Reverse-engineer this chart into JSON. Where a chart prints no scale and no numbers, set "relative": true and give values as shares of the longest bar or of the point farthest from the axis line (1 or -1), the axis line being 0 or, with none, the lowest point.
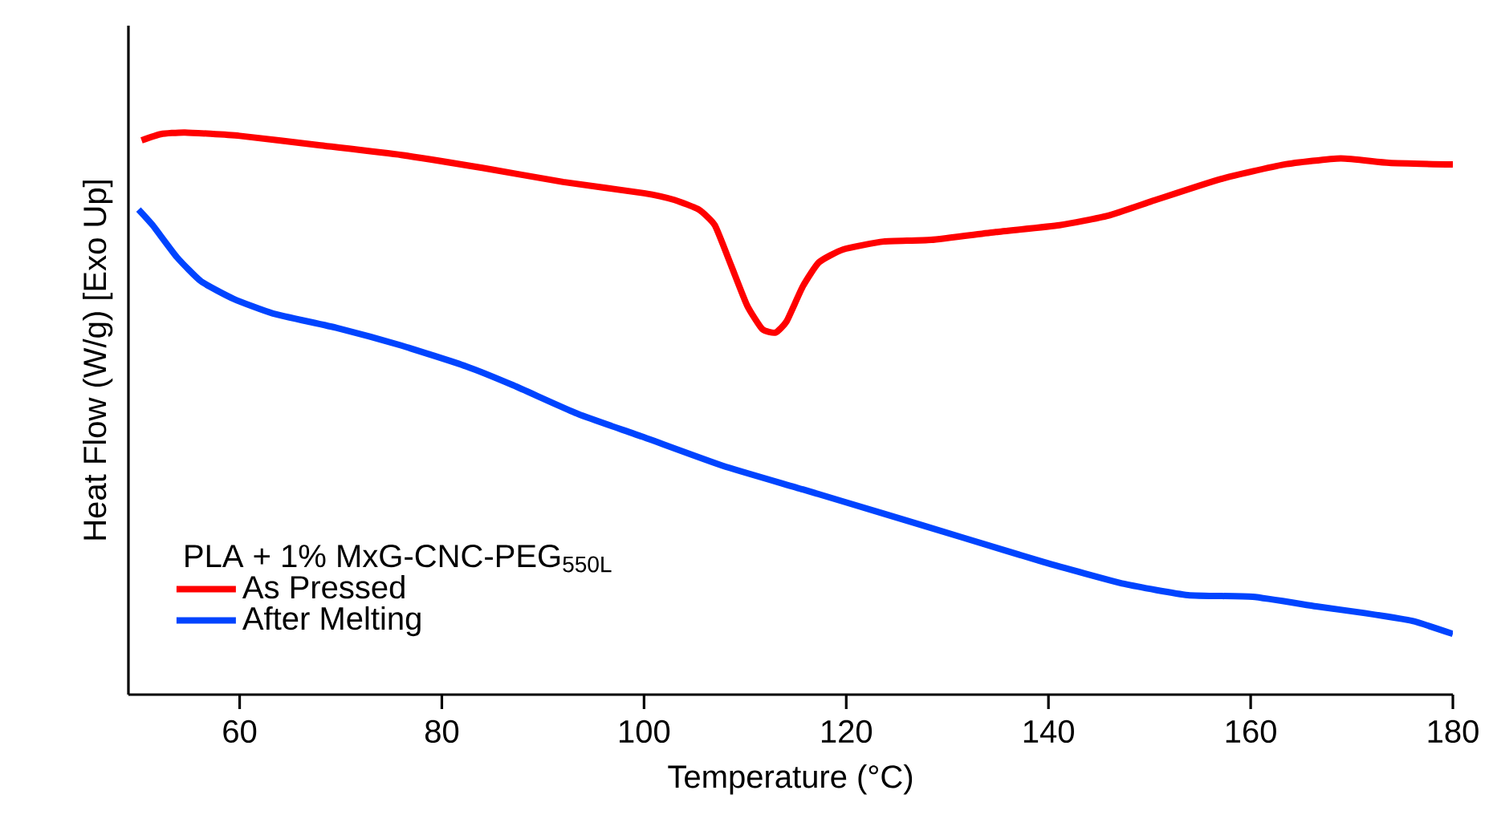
{
  "chart_data": {
    "type": "line",
    "xlabel": "Temperature (°C)",
    "ylabel": "Heat Flow (W/g) [Exo Up]",
    "legend_title": "PLA + 1% MxG-CNC-PEG$_{550L}$",
    "legend": "bottom left",
    "relative": true,
    "xlim": [
      49,
      180
    ],
    "xticks": [
      60,
      80,
      100,
      120,
      140,
      160,
      180
    ],
    "grid": false,
    "marker": "none",
    "line_style": "solid",
    "series": [
      {
        "name": "As Pressed",
        "color": "#ff0000",
        "x": [
          50.3,
          52.2,
          54.6,
          60,
          68,
          76,
          84,
          92,
          100,
          103,
          105.4,
          107,
          108.6,
          110.2,
          111.7,
          113,
          114.1,
          115.7,
          117.3,
          119.7,
          123.7,
          128.4,
          134.8,
          141.1,
          145.9,
          150.6,
          157,
          163.3,
          168.9,
          173.7,
          180
        ],
        "values": [
          0.986,
          0.997,
          1.0,
          0.994,
          0.977,
          0.96,
          0.937,
          0.912,
          0.892,
          0.88,
          0.863,
          0.835,
          0.764,
          0.692,
          0.65,
          0.644,
          0.664,
          0.726,
          0.769,
          0.792,
          0.806,
          0.809,
          0.823,
          0.835,
          0.852,
          0.88,
          0.917,
          0.943,
          0.954,
          0.946,
          0.943
        ]
      },
      {
        "name": "After Melting",
        "color": "#0044ff",
        "x": [
          50,
          51.4,
          53.8,
          56.2,
          59.4,
          63.3,
          69.7,
          76,
          82.4,
          87.1,
          93.5,
          99.8,
          107.8,
          115.7,
          123.7,
          131.6,
          139.5,
          147.5,
          153.8,
          160.2,
          166.5,
          171.3,
          176,
          180
        ],
        "values": [
          0.863,
          0.835,
          0.778,
          0.735,
          0.704,
          0.678,
          0.652,
          0.621,
          0.584,
          0.55,
          0.499,
          0.459,
          0.407,
          0.365,
          0.322,
          0.279,
          0.236,
          0.197,
          0.177,
          0.174,
          0.157,
          0.145,
          0.131,
          0.108
        ]
      }
    ]
  }
}
